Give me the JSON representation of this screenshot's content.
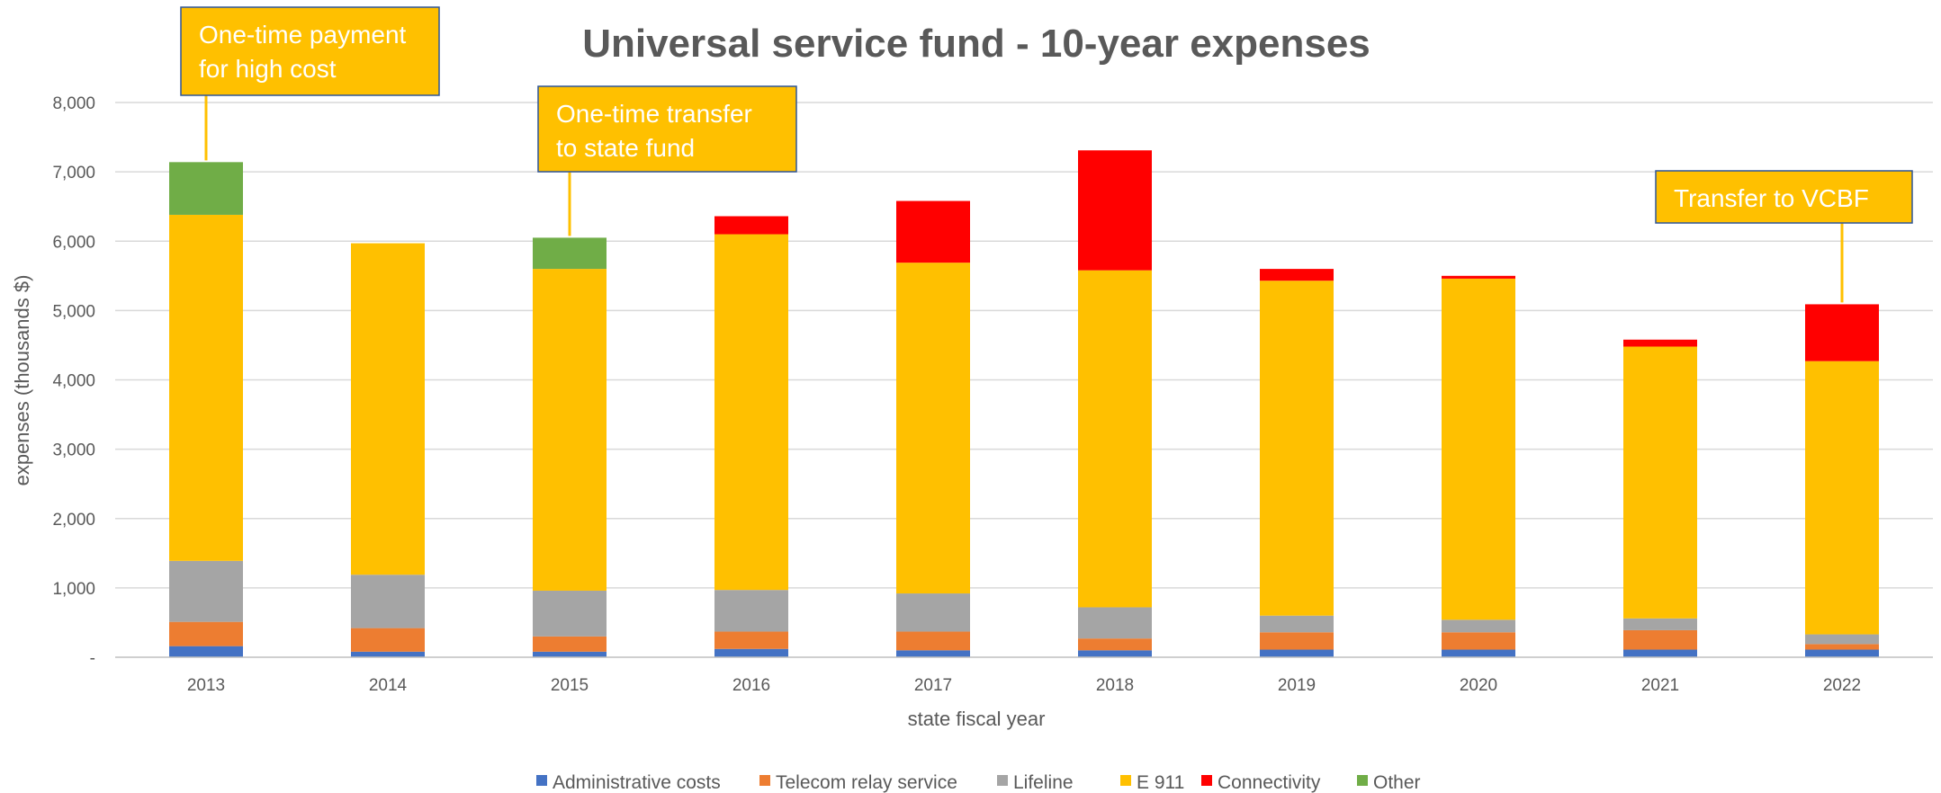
{
  "chart_data": {
    "type": "bar",
    "stacked": true,
    "title": "Universal service fund - 10-year expenses",
    "xlabel": "state fiscal year",
    "ylabel": "expenses (thousands $)",
    "ylim": [
      0,
      8000
    ],
    "yticks": [
      {
        "value": 0,
        "label": "-"
      },
      {
        "value": 1000,
        "label": "1,000"
      },
      {
        "value": 2000,
        "label": "2,000"
      },
      {
        "value": 3000,
        "label": "3,000"
      },
      {
        "value": 4000,
        "label": "4,000"
      },
      {
        "value": 5000,
        "label": "5,000"
      },
      {
        "value": 6000,
        "label": "6,000"
      },
      {
        "value": 7000,
        "label": "7,000"
      },
      {
        "value": 8000,
        "label": "8,000"
      }
    ],
    "grid": true,
    "legend_position": "bottom",
    "categories": [
      "2013",
      "2014",
      "2015",
      "2016",
      "2017",
      "2018",
      "2019",
      "2020",
      "2021",
      "2022"
    ],
    "series": [
      {
        "name": "Administrative costs",
        "color": "#4472C4",
        "values": [
          160,
          80,
          80,
          120,
          100,
          100,
          110,
          110,
          110,
          110
        ]
      },
      {
        "name": "Telecom relay service",
        "color": "#ED7D31",
        "values": [
          350,
          340,
          220,
          250,
          270,
          170,
          250,
          250,
          280,
          80
        ]
      },
      {
        "name": "Lifeline",
        "color": "#A5A5A5",
        "values": [
          880,
          770,
          660,
          600,
          550,
          450,
          240,
          180,
          170,
          140
        ]
      },
      {
        "name": "E 911",
        "color": "#FFC000",
        "values": [
          4990,
          4780,
          4640,
          5130,
          4770,
          4860,
          4830,
          4920,
          3920,
          3940
        ]
      },
      {
        "name": "Connectivity",
        "color": "#FF0000",
        "values": [
          0,
          0,
          0,
          260,
          890,
          1730,
          170,
          40,
          100,
          820
        ]
      },
      {
        "name": "Other",
        "color": "#70AD47",
        "values": [
          760,
          0,
          450,
          0,
          0,
          0,
          0,
          0,
          0,
          0
        ]
      }
    ],
    "annotations": [
      {
        "lines": [
          "One-time payment",
          "for high cost"
        ],
        "category": "2013"
      },
      {
        "lines": [
          "One-time transfer",
          "to state fund"
        ],
        "category": "2015"
      },
      {
        "lines": [
          "Transfer to VCBF"
        ],
        "category": "2022"
      }
    ]
  }
}
